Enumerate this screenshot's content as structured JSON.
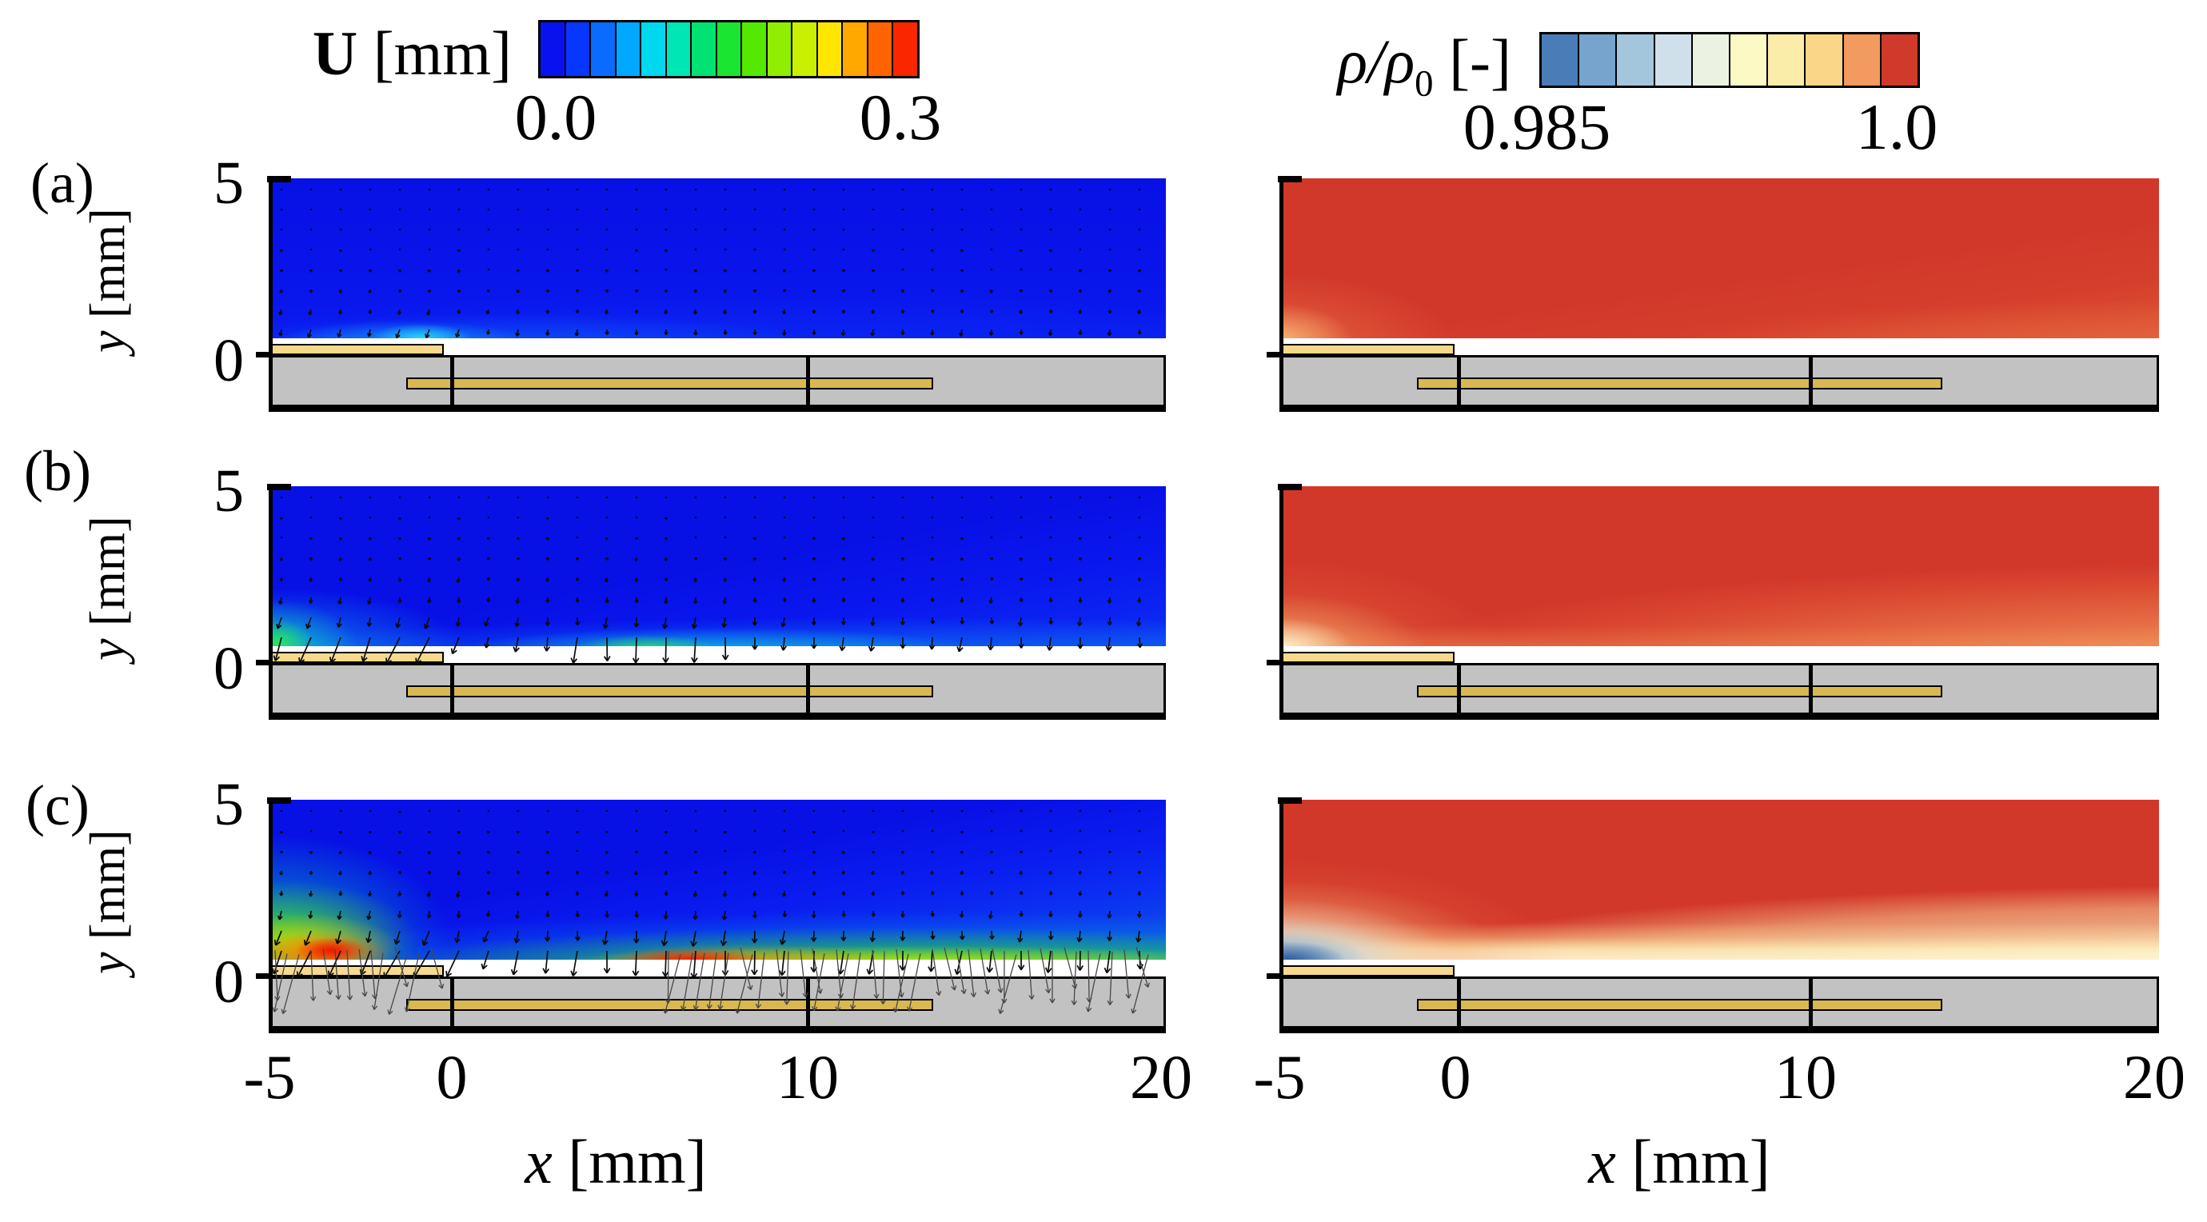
{
  "colorbars": {
    "velocity": {
      "sym": "U",
      "unit": " [mm]",
      "min": "0.0",
      "max": "0.3",
      "segments": [
        "#0712ee",
        "#0736ff",
        "#0a6cff",
        "#00a8ff",
        "#00d8f0",
        "#00e6b4",
        "#00e372",
        "#1ae632",
        "#55e800",
        "#90ee00",
        "#c8f000",
        "#ffe600",
        "#ffa800",
        "#ff6400",
        "#f92600"
      ]
    },
    "density": {
      "sym": "ρ/ρ",
      "sub": "0",
      "unit": " [-]",
      "min": "0.985",
      "max": "1.0",
      "segments": [
        "#4a7db8",
        "#76a4cc",
        "#a3c6dd",
        "#cfe0ea",
        "#ecf2e2",
        "#fbf9c4",
        "#fcecaa",
        "#f9d688",
        "#f29a5f",
        "#d03a2b"
      ]
    }
  },
  "rows": [
    {
      "label": "(a)"
    },
    {
      "label": "(b)"
    },
    {
      "label": "(c)"
    }
  ],
  "axes": {
    "x": {
      "var": "x",
      "unit": " [mm]",
      "ticks": [
        "-5",
        "0",
        "10",
        "20"
      ]
    },
    "y": {
      "var": "y",
      "unit": " [mm]",
      "ticks": [
        "5",
        "0"
      ]
    }
  },
  "chart_data": [
    {
      "type": "heatmap",
      "panel": "(a) left",
      "quantity": "velocity magnitude U",
      "colormap": "jet blue→red, 15 discrete levels",
      "color_range": [
        0.0,
        0.3
      ],
      "color_unit": "mm",
      "x_range_mm": [
        -5,
        20
      ],
      "y_range_mm": [
        0,
        5
      ],
      "overlay": "grid of velocity vector arrows",
      "features": "nearly uniform low velocity (dark blue); weak downward vectors; small brighter cyan patch at the wall near x≈0–2 mm"
    },
    {
      "type": "heatmap",
      "panel": "(b) left",
      "quantity": "velocity magnitude U",
      "colormap": "jet blue→red, 15 discrete levels",
      "color_range": [
        0.0,
        0.3
      ],
      "color_unit": "mm",
      "x_range_mm": [
        -5,
        20
      ],
      "y_range_mm": [
        0,
        5
      ],
      "overlay": "grid of velocity vector arrows",
      "features": "cyan/green faster region at the wall for x<0, green patch near x≈4–6 mm, cyan layer along the wall to x=20 mm; downward vectors strengthen near the wall and dip below the surface locally"
    },
    {
      "type": "heatmap",
      "panel": "(c) left",
      "quantity": "velocity magnitude U",
      "colormap": "jet blue→red, 15 discrete levels",
      "color_range": [
        0.0,
        0.3
      ],
      "color_unit": "mm",
      "x_range_mm": [
        -5,
        20
      ],
      "y_range_mm": [
        0,
        5
      ],
      "overlay": "grid of velocity vector arrows",
      "features": "strong wall jet: red cores (≈0.3) at the wall near x≈−4…−1 mm and x≈6–8 mm with green/yellow band along the wall to x=20 mm; large downward vectors extend below the surface on the left and for x>6 mm"
    },
    {
      "type": "heatmap",
      "panel": "(a) right",
      "quantity": "normalized density ρ/ρ0",
      "colormap": "blue→white→red, 10 discrete levels",
      "color_range": [
        0.985,
        1.0
      ],
      "color_unit": "-",
      "x_range_mm": [
        -5,
        20
      ],
      "y_range_mm": [
        0,
        5
      ],
      "features": "nearly uniform ρ/ρ0≈1 (red); slightly lower density at the bottom-left corner and along the bottom-right edge"
    },
    {
      "type": "heatmap",
      "panel": "(b) right",
      "quantity": "normalized density ρ/ρ0",
      "colormap": "blue→white→red, 10 discrete levels",
      "color_range": [
        0.985,
        1.0
      ],
      "color_unit": "-",
      "x_range_mm": [
        -5,
        20
      ],
      "y_range_mm": [
        0,
        5
      ],
      "features": "pale low-density pocket at the wall for x≈−5…−2 mm; thin lighter layer along the wall thickening toward x=20 mm"
    },
    {
      "type": "heatmap",
      "panel": "(c) right",
      "quantity": "normalized density ρ/ρ0",
      "colormap": "blue→white→red, 10 discrete levels",
      "color_range": [
        0.985,
        1.0
      ],
      "color_unit": "-",
      "x_range_mm": [
        -5,
        20
      ],
      "y_range_mm": [
        0,
        5
      ],
      "features": "pronounced low-density blue region (≈0.985) at the wall for x≈−5…−2 mm fading through white/yellow; cream low-density layer along the wall thickening toward x=20 mm"
    }
  ],
  "geometry": {
    "exposed_electrode": "tan strip on the surface from x≈−5 to 0 mm",
    "buried_electrode": "tan strip inside the dielectric from x≈−1 to ≈13.5 mm",
    "substrate": "grey dielectric slab below y=0 spanning x=−5…20 mm",
    "tick_lines": "vertical marks through the substrate at x=0 and x=10"
  }
}
